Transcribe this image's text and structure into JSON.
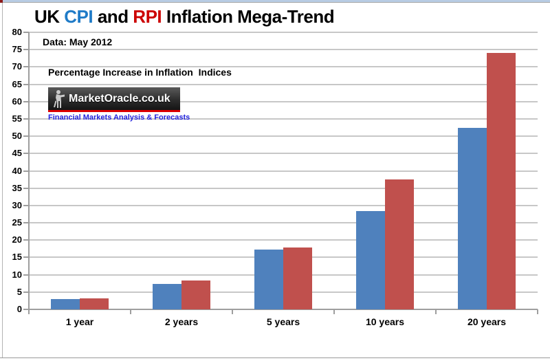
{
  "page": {
    "title_segments": [
      {
        "text": "UK ",
        "color": "#000000"
      },
      {
        "text": "CPI",
        "color": "#1f7bc7"
      },
      {
        "text": " and ",
        "color": "#000000"
      },
      {
        "text": "RPI",
        "color": "#cc0000"
      },
      {
        "text": " Inflation Mega-Trend",
        "color": "#000000"
      }
    ],
    "data_note": "Data: May 2012",
    "axis_note": "Percentage Increase in Inflation  Indices"
  },
  "logo": {
    "name": "MarketOracle.co.uk",
    "tagline": "Financial Markets Analysis & Forecasts"
  },
  "chart_data": {
    "type": "bar",
    "title": "UK CPI and RPI Inflation Mega-Trend",
    "subtitle": "Data: May 2012",
    "ylabel_note": "Percentage Increase in Inflation Indices",
    "categories": [
      "1 year",
      "2 years",
      "5 years",
      "10 years",
      "20 years"
    ],
    "series": [
      {
        "name": "CPI",
        "color": "#4f81bd",
        "values": [
          3.0,
          7.3,
          17.2,
          28.4,
          52.5
        ]
      },
      {
        "name": "RPI",
        "color": "#c0504d",
        "values": [
          3.2,
          8.4,
          17.8,
          37.6,
          74.0
        ]
      }
    ],
    "ylim": [
      0,
      80
    ],
    "ytick_step": 5,
    "grid": true,
    "legend": "none (series identified by title colors)"
  }
}
